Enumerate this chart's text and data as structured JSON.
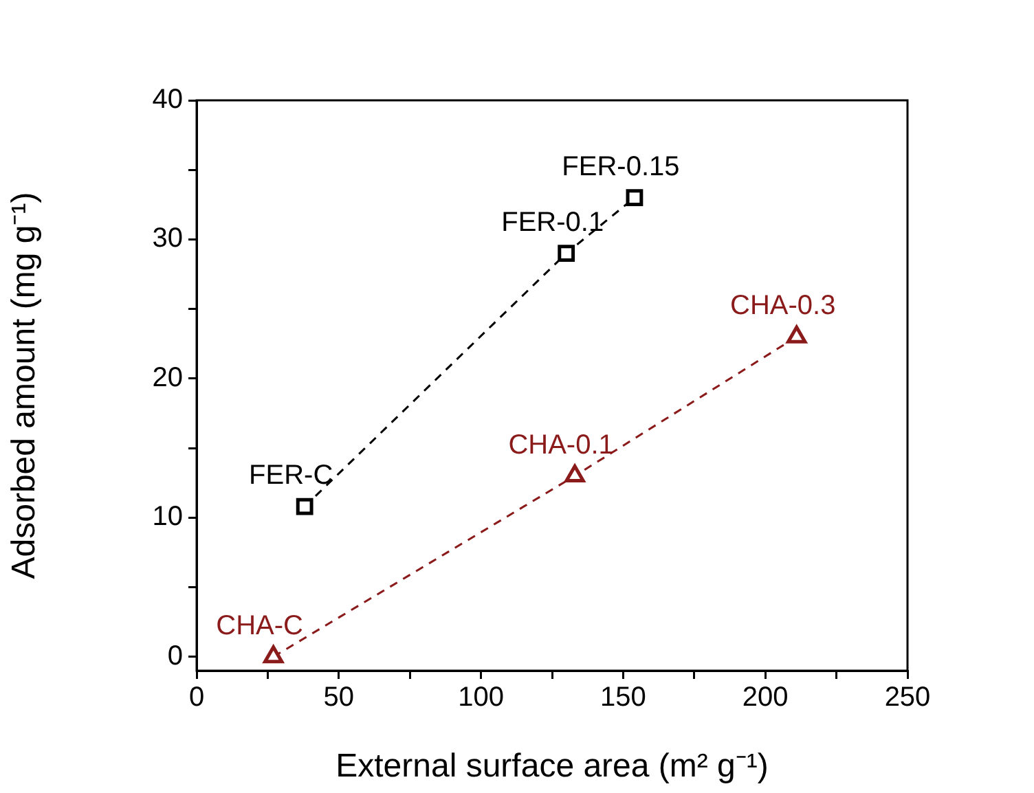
{
  "chart_data": {
    "type": "line",
    "xlabel": "External surface area (m² g⁻¹)",
    "ylabel": "Adsorbed amount (mg g⁻¹)",
    "series": [
      {
        "color": "#000000",
        "marker": "square",
        "line_style": "dashed",
        "x": [
          38,
          130,
          154
        ],
        "values": [
          10.8,
          29,
          33
        ]
      },
      {
        "color": "#8b1a1a",
        "marker": "triangle",
        "line_style": "dashed",
        "x": [
          27,
          133,
          211
        ],
        "values": [
          0,
          13,
          23
        ]
      }
    ],
    "xlim": [
      0,
      250
    ],
    "xticks": [
      0,
      {
        "value": 25,
        "label": null
      },
      50,
      {
        "value": 75,
        "label": null
      },
      100,
      {
        "value": 125,
        "label": null
      },
      150,
      {
        "value": 175,
        "label": null
      },
      200,
      {
        "value": 225,
        "label": null
      },
      250
    ],
    "ylim": [
      -1,
      40
    ],
    "yticks": [
      0,
      {
        "value": 5,
        "label": null
      },
      10,
      {
        "value": 15,
        "label": null
      },
      20,
      {
        "value": 25,
        "label": null
      },
      30,
      {
        "value": 35,
        "label": null
      },
      40
    ],
    "grid": false,
    "legend": false,
    "annotations": [
      {
        "text": "FER-C",
        "x": 38,
        "y": 10.8
      },
      {
        "text": "FER-0.1",
        "x": 130,
        "y": 29
      },
      {
        "text": "FER-0.15",
        "x": 154,
        "y": 33
      },
      {
        "text": "CHA-C",
        "x": 27,
        "y": 0
      },
      {
        "text": "CHA-0.1",
        "x": 133,
        "y": 13
      },
      {
        "text": "CHA-0.3",
        "x": 211,
        "y": 23
      }
    ]
  }
}
